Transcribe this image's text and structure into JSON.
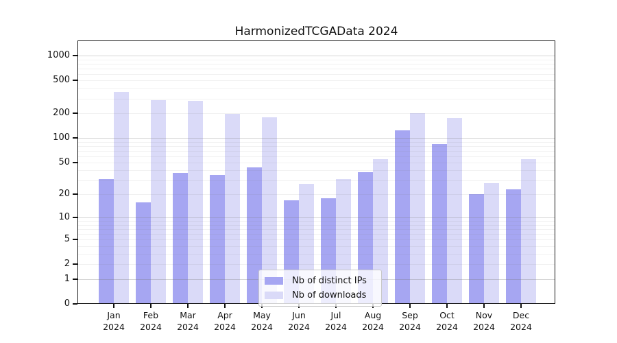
{
  "title": "HarmonizedTCGAData 2024",
  "chart_data": {
    "type": "bar",
    "title": "HarmonizedTCGAData 2024",
    "categories": [
      "Jan",
      "Feb",
      "Mar",
      "Apr",
      "May",
      "Jun",
      "Jul",
      "Aug",
      "Sep",
      "Oct",
      "Nov",
      "Dec"
    ],
    "category_year": "2024",
    "series": [
      {
        "name": "Nb of distinct IPs",
        "color": "#a6a6f2",
        "values": [
          31,
          16,
          37,
          35,
          44,
          17,
          18,
          38,
          125,
          84,
          20,
          23
        ]
      },
      {
        "name": "Nb of downloads",
        "color": "#dadaf8",
        "values": [
          360,
          290,
          285,
          195,
          180,
          27,
          31,
          55,
          200,
          175,
          28,
          55
        ]
      }
    ],
    "xlabel": "",
    "ylabel": "",
    "yscale": "log1p",
    "ylim": [
      0,
      1000
    ],
    "yticks": [
      0,
      1,
      2,
      5,
      10,
      20,
      50,
      100,
      200,
      500,
      1000
    ],
    "grid": true,
    "grid_major": [
      1,
      10,
      100,
      1000
    ],
    "legend_position": "inside-bottom-center"
  },
  "colors": {
    "axis": "#111111",
    "grid_major": "rgba(120,120,120,0.32)",
    "grid_minor": "rgba(120,120,120,0.10)",
    "legend_border": "#c8c8c8"
  }
}
